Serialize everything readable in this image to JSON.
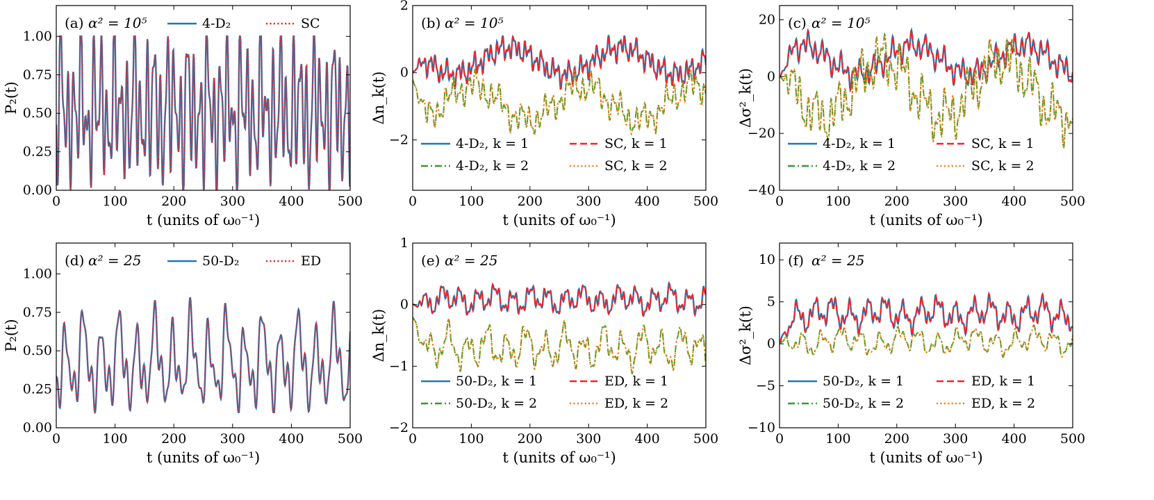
{
  "colors": {
    "blue": "#1f77b4",
    "red": "#ff1f1f",
    "green": "#2ca02c",
    "orange": "#ff7f0e"
  },
  "chart_data": [
    {
      "id": "a",
      "type": "line",
      "label": "(a)",
      "param": "α² = 10⁵",
      "xlabel": "t (units of ω₀⁻¹)",
      "ylabel": "P₂(t)",
      "xlim": [
        0,
        500
      ],
      "ylim": [
        0,
        1.2
      ],
      "xticks": [
        "0",
        "100",
        "200",
        "300",
        "400",
        "500"
      ],
      "yticks": [
        "0.00",
        "0.25",
        "0.50",
        "0.75",
        "1.00"
      ],
      "ytick_values": [
        0,
        0.25,
        0.5,
        0.75,
        1.0
      ],
      "legend": [
        "4-D₂",
        "SC"
      ],
      "legend_cols": 2,
      "series": [
        {
          "name": "4-D₂",
          "style": "solid",
          "color": "#1f77b4",
          "gen": {
            "base": 0.52,
            "amp": 0.46,
            "periods": [
              11.3,
              7.1,
              31,
              17.9
            ],
            "weights": [
              1,
              0.6,
              0.5,
              0.4
            ],
            "seed": 1,
            "clip": [
              0.0,
              1.0
            ]
          }
        },
        {
          "name": "SC",
          "style": "dotted",
          "color": "#ff1f1f",
          "gen": {
            "base": 0.52,
            "amp": 0.46,
            "periods": [
              11.3,
              7.1,
              31,
              17.9
            ],
            "weights": [
              1,
              0.6,
              0.5,
              0.4
            ],
            "seed": 1,
            "clip": [
              0.0,
              1.0
            ]
          }
        }
      ]
    },
    {
      "id": "b",
      "type": "line",
      "label": "(b)",
      "param": "α² = 10⁵",
      "xlabel": "t (units of ω₀⁻¹)",
      "ylabel": "Δn_k(t)",
      "xlim": [
        0,
        500
      ],
      "ylim": [
        -3.5,
        2
      ],
      "xticks": [
        "0",
        "100",
        "200",
        "300",
        "400",
        "500"
      ],
      "yticks": [
        "−2",
        "0",
        "2"
      ],
      "ytick_values": [
        -2,
        0,
        2
      ],
      "legend": [
        "4-D₂, k = 1",
        "SC, k = 1",
        "4-D₂, k = 2",
        "SC, k = 2"
      ],
      "legend_cols": 2,
      "series": [
        {
          "name": "4-D₂, k = 1",
          "style": "solid",
          "color": "#1f77b4",
          "gen": {
            "base": 0.35,
            "amp": 0.55,
            "periods": [
              190,
              9.5,
              5.3,
              23
            ],
            "weights": [
              1,
              0.5,
              0.3,
              0.4
            ],
            "seed": 2,
            "start": 0
          }
        },
        {
          "name": "SC, k = 1",
          "style": "dashed",
          "color": "#ff1f1f",
          "gen": {
            "base": 0.35,
            "amp": 0.55,
            "periods": [
              190,
              9.5,
              5.3,
              23
            ],
            "weights": [
              1,
              0.5,
              0.3,
              0.4
            ],
            "seed": 2,
            "start": 0
          }
        },
        {
          "name": "4-D₂, k = 2",
          "style": "dashdot",
          "color": "#2ca02c",
          "gen": {
            "base": -0.9,
            "amp": 0.7,
            "periods": [
              190,
              13,
              7.1,
              41
            ],
            "weights": [
              -1,
              0.5,
              0.3,
              0.4
            ],
            "seed": 3,
            "start": -0.2
          }
        },
        {
          "name": "SC, k = 2",
          "style": "dotted",
          "color": "#ff7f0e",
          "gen": {
            "base": -0.9,
            "amp": 0.7,
            "periods": [
              190,
              13,
              7.1,
              41
            ],
            "weights": [
              -1,
              0.5,
              0.3,
              0.4
            ],
            "seed": 3,
            "start": -0.2
          }
        }
      ]
    },
    {
      "id": "c",
      "type": "line",
      "label": "(c)",
      "param": "α² = 10⁵",
      "xlabel": "t (units of ω₀⁻¹)",
      "ylabel": "Δσ²_k(t)",
      "xlim": [
        0,
        500
      ],
      "ylim": [
        -40,
        25
      ],
      "xticks": [
        "0",
        "100",
        "200",
        "300",
        "400",
        "500"
      ],
      "yticks": [
        "−40",
        "−20",
        "0",
        "20"
      ],
      "ytick_values": [
        -40,
        -20,
        0,
        20
      ],
      "legend": [
        "4-D₂, k = 1",
        "SC, k = 1",
        "4-D₂, k = 2",
        "SC, k = 2"
      ],
      "legend_cols": 2,
      "series": [
        {
          "name": "4-D₂, k = 1",
          "style": "solid",
          "color": "#1f77b4",
          "gen": {
            "base": 6,
            "amp": 7,
            "periods": [
              190,
              11,
              6.3,
              29
            ],
            "weights": [
              1,
              0.5,
              0.3,
              0.4
            ],
            "seed": 4,
            "start": 0
          }
        },
        {
          "name": "SC, k = 1",
          "style": "dashed",
          "color": "#ff1f1f",
          "gen": {
            "base": 6,
            "amp": 7,
            "periods": [
              190,
              11,
              6.3,
              29
            ],
            "weights": [
              1,
              0.5,
              0.3,
              0.4
            ],
            "seed": 4,
            "start": 0
          }
        },
        {
          "name": "4-D₂, k = 2",
          "style": "dashdot",
          "color": "#2ca02c",
          "gen": {
            "base": -4,
            "amp": 14,
            "periods": [
              205,
              13,
              7.7,
              37
            ],
            "weights": [
              -1,
              0.45,
              0.3,
              0.45
            ],
            "seed": 5,
            "start": 0
          }
        },
        {
          "name": "SC, k = 2",
          "style": "dotted",
          "color": "#ff7f0e",
          "gen": {
            "base": -4,
            "amp": 14,
            "periods": [
              205,
              13,
              7.7,
              37
            ],
            "weights": [
              -1,
              0.45,
              0.3,
              0.45
            ],
            "seed": 5,
            "start": 0
          }
        }
      ]
    },
    {
      "id": "d",
      "type": "line",
      "label": "(d)",
      "param": "α² = 25",
      "xlabel": "t (units of ω₀⁻¹)",
      "ylabel": "P₂(t)",
      "xlim": [
        0,
        500
      ],
      "ylim": [
        0,
        1.2
      ],
      "xticks": [
        "0",
        "100",
        "200",
        "300",
        "400",
        "500"
      ],
      "yticks": [
        "0.00",
        "0.25",
        "0.50",
        "0.75",
        "1.00"
      ],
      "ytick_values": [
        0,
        0.25,
        0.5,
        0.75,
        1.0
      ],
      "legend": [
        "50-D₂",
        "ED"
      ],
      "legend_cols": 2,
      "series": [
        {
          "name": "50-D₂",
          "style": "solid",
          "color": "#1f77b4",
          "gen": {
            "base": 0.42,
            "amp": 0.28,
            "periods": [
              30.5,
              15.2,
              9.8,
              61
            ],
            "weights": [
              1,
              0.5,
              0.35,
              0.3
            ],
            "seed": 6,
            "clip": [
              0.1,
              0.95
            ]
          }
        },
        {
          "name": "ED",
          "style": "dotted",
          "color": "#ff1f1f",
          "gen": {
            "base": 0.42,
            "amp": 0.28,
            "periods": [
              30.5,
              15.2,
              9.8,
              61
            ],
            "weights": [
              1,
              0.5,
              0.35,
              0.3
            ],
            "seed": 6,
            "clip": [
              0.1,
              0.95
            ]
          }
        }
      ]
    },
    {
      "id": "e",
      "type": "line",
      "label": "(e)",
      "param": "α² = 25",
      "xlabel": "t (units of ω₀⁻¹)",
      "ylabel": "Δn_k(t)",
      "xlim": [
        0,
        500
      ],
      "ylim": [
        -2,
        1
      ],
      "xticks": [
        "0",
        "100",
        "200",
        "300",
        "400",
        "500"
      ],
      "yticks": [
        "−2",
        "−1",
        "0",
        "1"
      ],
      "ytick_values": [
        -2,
        -1,
        0,
        1
      ],
      "legend": [
        "50-D₂, k = 1",
        "ED, k = 1",
        "50-D₂, k = 2",
        "ED, k = 2"
      ],
      "legend_cols": 2,
      "series": [
        {
          "name": "50-D₂, k = 1",
          "style": "solid",
          "color": "#1f77b4",
          "gen": {
            "base": 0.08,
            "amp": 0.2,
            "periods": [
              30,
              9.7,
              5.9,
              75
            ],
            "weights": [
              1,
              0.5,
              0.35,
              0.4
            ],
            "seed": 7,
            "start": 0
          }
        },
        {
          "name": "ED, k = 1",
          "style": "dashed",
          "color": "#ff1f1f",
          "gen": {
            "base": 0.08,
            "amp": 0.2,
            "periods": [
              30,
              9.7,
              5.9,
              75
            ],
            "weights": [
              1,
              0.5,
              0.35,
              0.4
            ],
            "seed": 7,
            "start": 0
          }
        },
        {
          "name": "50-D₂, k = 2",
          "style": "dashdot",
          "color": "#2ca02c",
          "gen": {
            "base": -0.7,
            "amp": 0.3,
            "periods": [
              33,
              14,
              7.9,
              68
            ],
            "weights": [
              1,
              0.45,
              0.3,
              0.4
            ],
            "seed": 8,
            "start": -0.2
          }
        },
        {
          "name": "ED, k = 2",
          "style": "dotted",
          "color": "#ff7f0e",
          "gen": {
            "base": -0.7,
            "amp": 0.3,
            "periods": [
              33,
              14,
              7.9,
              68
            ],
            "weights": [
              1,
              0.45,
              0.3,
              0.4
            ],
            "seed": 8,
            "start": -0.2
          }
        }
      ]
    },
    {
      "id": "f",
      "type": "line",
      "label": "(f)",
      "param": "α² = 25",
      "xlabel": "t (units of ω₀⁻¹)",
      "ylabel": "Δσ²_k(t)",
      "xlim": [
        0,
        500
      ],
      "ylim": [
        -10,
        12
      ],
      "xticks": [
        "0",
        "100",
        "200",
        "300",
        "400",
        "500"
      ],
      "yticks": [
        "−10",
        "−5",
        "0",
        "5",
        "10"
      ],
      "ytick_values": [
        -10,
        -5,
        0,
        5,
        10
      ],
      "legend": [
        "50-D₂, k = 1",
        "ED, k = 1",
        "50-D₂, k = 2",
        "ED, k = 2"
      ],
      "legend_cols": 2,
      "series": [
        {
          "name": "50-D₂, k = 1",
          "style": "solid",
          "color": "#1f77b4",
          "gen": {
            "base": 3.6,
            "amp": 1.7,
            "periods": [
              30,
              11.3,
              6.1,
              90
            ],
            "weights": [
              1,
              0.5,
              0.35,
              0.4
            ],
            "seed": 9,
            "start": 0
          }
        },
        {
          "name": "ED, k = 1",
          "style": "dashed",
          "color": "#ff1f1f",
          "gen": {
            "base": 3.6,
            "amp": 1.7,
            "periods": [
              30,
              11.3,
              6.1,
              90
            ],
            "weights": [
              1,
              0.5,
              0.35,
              0.4
            ],
            "seed": 9,
            "start": 0
          }
        },
        {
          "name": "50-D₂, k = 2",
          "style": "dashdot",
          "color": "#2ca02c",
          "gen": {
            "base": 0.3,
            "amp": 1.4,
            "periods": [
              33,
              14.5,
              8.3,
              110
            ],
            "weights": [
              1,
              0.45,
              0.3,
              0.5
            ],
            "seed": 10,
            "start": 0
          }
        },
        {
          "name": "ED, k = 2",
          "style": "dotted",
          "color": "#ff7f0e",
          "gen": {
            "base": 0.3,
            "amp": 1.4,
            "periods": [
              33,
              14.5,
              8.3,
              110
            ],
            "weights": [
              1,
              0.45,
              0.3,
              0.5
            ],
            "seed": 10,
            "start": 0
          }
        }
      ]
    }
  ]
}
